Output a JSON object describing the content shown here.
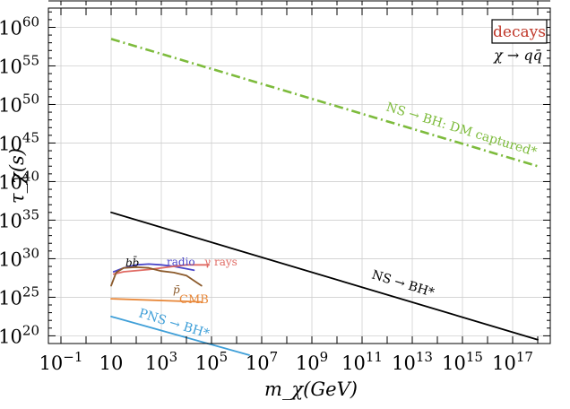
{
  "chart_data": {
    "type": "line",
    "xlabel": "m_χ(GeV)",
    "ylabel": "τ_χ(s)",
    "x_log10_range": [
      -1.5,
      18.5
    ],
    "y_log10_range": [
      19,
      62.5
    ],
    "x_tick_exponents": [
      -1,
      1,
      3,
      5,
      7,
      9,
      11,
      13,
      15,
      17
    ],
    "x_tick_labels": [
      "10",
      "10",
      "10",
      "10",
      "10",
      "10",
      "10",
      "10",
      "10",
      "10"
    ],
    "y_tick_exponents": [
      20,
      25,
      30,
      35,
      40,
      45,
      50,
      55,
      60
    ],
    "y_tick_labels": [
      "10",
      "10",
      "10",
      "10",
      "10",
      "10",
      "10",
      "10",
      "10"
    ],
    "grid": true,
    "legend_box": {
      "title": "decays",
      "subtitle": "χ → qq̄",
      "title_color": "#c0392b"
    },
    "series": [
      {
        "name": "NS → BH: DM captured*",
        "color": "#7dbb3c",
        "style": "dashdot",
        "log_x": [
          1,
          18
        ],
        "log_y": [
          58.5,
          42
        ]
      },
      {
        "name": "NS → BH*",
        "color": "#000000",
        "style": "solid",
        "log_x": [
          1,
          18
        ],
        "log_y": [
          36,
          19.5
        ]
      },
      {
        "name": "PNS → BH*",
        "color": "#3f9fd8",
        "style": "solid",
        "log_x": [
          1,
          6.5
        ],
        "log_y": [
          22.5,
          17.5
        ]
      },
      {
        "name": "CMB",
        "color": "#e8883a",
        "style": "solid",
        "log_x": [
          1,
          4.6
        ],
        "log_y": [
          24.8,
          24.4
        ]
      },
      {
        "name": "radio",
        "color": "#4b47c9",
        "style": "solid",
        "log_x": [
          1.1,
          1.5,
          2.0,
          2.5,
          3.0,
          3.5,
          4.0,
          4.3
        ],
        "log_y": [
          28.3,
          28.8,
          29.2,
          29.3,
          29.2,
          29.0,
          28.7,
          28.5
        ]
      },
      {
        "name": "γ rays",
        "color": "#e06a63",
        "style": "solid",
        "log_x": [
          1.1,
          1.5,
          2.5,
          3.5,
          4.0,
          4.5,
          4.9
        ],
        "log_y": [
          28.0,
          28.3,
          28.6,
          29.0,
          29.2,
          29.2,
          29.2
        ]
      },
      {
        "name": "p̄",
        "color": "#8b5a2b",
        "style": "solid",
        "log_x": [
          1.0,
          1.2,
          1.5,
          2.0,
          2.5,
          3.0,
          3.5,
          4.0,
          4.6
        ],
        "log_y": [
          26.5,
          28.2,
          28.8,
          28.9,
          28.8,
          28.4,
          28.2,
          27.8,
          26.5
        ]
      }
    ],
    "annotations": [
      {
        "text": "NS → BH: DM captured*",
        "color": "#7dbb3c"
      },
      {
        "text": "NS → BH*",
        "color": "#000000"
      },
      {
        "text": "PNS → BH*",
        "color": "#3f9fd8"
      },
      {
        "text": "CMB",
        "color": "#e8883a"
      },
      {
        "text": "radio",
        "color": "#4b47c9"
      },
      {
        "text": "γ rays",
        "color": "#e06a63"
      },
      {
        "text": "p̄",
        "color": "#8b5a2b"
      },
      {
        "text": "bb̄",
        "color": "#000000"
      }
    ]
  }
}
